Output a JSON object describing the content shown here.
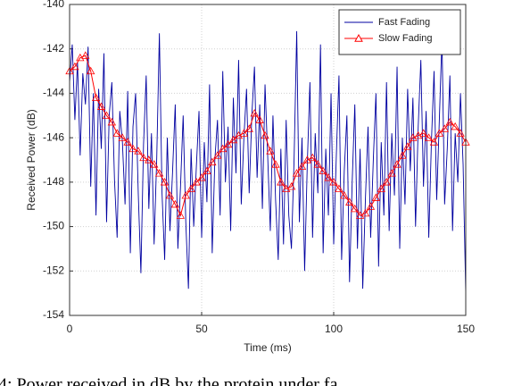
{
  "chart_data": {
    "type": "line",
    "xlabel": "Time (ms)",
    "ylabel": "Received Power (dB)",
    "caption": "4: Power received in dB by the protein under fa",
    "xlim": [
      0,
      150
    ],
    "xticks": [
      0,
      50,
      100,
      150
    ],
    "ylim": [
      -154,
      -140
    ],
    "yticks": [
      -154,
      -152,
      -150,
      -148,
      -146,
      -144,
      -142,
      -140
    ],
    "grid": true,
    "legend": "upper right",
    "series": [
      {
        "name": "Fast Fading",
        "color": "#0000a0",
        "marker": "none",
        "x": [
          0,
          1,
          2,
          3,
          4,
          5,
          6,
          7,
          8,
          9,
          10,
          11,
          12,
          13,
          14,
          15,
          16,
          17,
          18,
          19,
          20,
          21,
          22,
          23,
          24,
          25,
          26,
          27,
          28,
          29,
          30,
          31,
          32,
          33,
          34,
          35,
          36,
          37,
          38,
          39,
          40,
          41,
          42,
          43,
          44,
          45,
          46,
          47,
          48,
          49,
          50,
          51,
          52,
          53,
          54,
          55,
          56,
          57,
          58,
          59,
          60,
          61,
          62,
          63,
          64,
          65,
          66,
          67,
          68,
          69,
          70,
          71,
          72,
          73,
          74,
          75,
          76,
          77,
          78,
          79,
          80,
          81,
          82,
          83,
          84,
          85,
          86,
          87,
          88,
          89,
          90,
          91,
          92,
          93,
          94,
          95,
          96,
          97,
          98,
          99,
          100,
          101,
          102,
          103,
          104,
          105,
          106,
          107,
          108,
          109,
          110,
          111,
          112,
          113,
          114,
          115,
          116,
          117,
          118,
          119,
          120,
          121,
          122,
          123,
          124,
          125,
          126,
          127,
          128,
          129,
          130,
          131,
          132,
          133,
          134,
          135,
          136,
          137,
          138,
          139,
          140,
          141,
          142,
          143,
          144,
          145,
          146,
          147,
          148,
          149,
          150
        ],
        "values": [
          -143.5,
          -141.8,
          -145.2,
          -142.6,
          -146.8,
          -143.1,
          -144.5,
          -141.9,
          -148.2,
          -144.0,
          -149.5,
          -143.8,
          -146.5,
          -142.2,
          -149.8,
          -145.0,
          -143.5,
          -147.9,
          -150.5,
          -144.8,
          -146.2,
          -149.0,
          -143.9,
          -151.2,
          -145.5,
          -144.0,
          -148.5,
          -152.1,
          -146.3,
          -143.2,
          -149.2,
          -145.8,
          -150.8,
          -146.9,
          -141.3,
          -148.5,
          -151.5,
          -146.0,
          -150.2,
          -147.5,
          -144.5,
          -151.0,
          -148.2,
          -145.0,
          -149.8,
          -152.8,
          -146.5,
          -150.0,
          -147.3,
          -144.8,
          -150.5,
          -146.2,
          -148.9,
          -143.6,
          -151.2,
          -147.0,
          -145.2,
          -149.5,
          -143.0,
          -148.0,
          -145.5,
          -150.2,
          -144.2,
          -147.6,
          -142.5,
          -149.0,
          -146.0,
          -143.8,
          -148.5,
          -145.0,
          -142.8,
          -147.8,
          -144.5,
          -149.2,
          -143.6,
          -146.8,
          -150.2,
          -145.0,
          -148.8,
          -151.5,
          -146.5,
          -150.8,
          -145.2,
          -149.5,
          -151.0,
          -147.0,
          -141.2,
          -149.8,
          -146.0,
          -152.0,
          -147.2,
          -143.5,
          -150.5,
          -145.8,
          -148.5,
          -141.8,
          -151.2,
          -146.5,
          -149.5,
          -144.0,
          -150.8,
          -146.8,
          -143.2,
          -151.5,
          -147.5,
          -145.0,
          -152.5,
          -148.0,
          -144.5,
          -151.0,
          -146.5,
          -152.8,
          -148.8,
          -145.5,
          -150.5,
          -147.0,
          -144.0,
          -151.8,
          -146.2,
          -149.5,
          -143.5,
          -150.2,
          -145.8,
          -148.6,
          -142.8,
          -151.0,
          -146.0,
          -149.0,
          -143.8,
          -147.5,
          -144.2,
          -150.0,
          -145.5,
          -142.5,
          -148.2,
          -144.8,
          -150.5,
          -146.2,
          -143.0,
          -148.8,
          -145.2,
          -141.5,
          -149.0,
          -146.5,
          -143.2,
          -150.2,
          -145.8,
          -148.0,
          -144.0,
          -147.2,
          -153.0
        ]
      },
      {
        "name": "Slow Fading",
        "color": "#ff0000",
        "marker": "triangle",
        "x": [
          0,
          2,
          4,
          6,
          8,
          10,
          12,
          14,
          16,
          18,
          20,
          22,
          24,
          26,
          28,
          30,
          32,
          34,
          36,
          38,
          40,
          42,
          44,
          46,
          48,
          50,
          52,
          54,
          56,
          58,
          60,
          62,
          64,
          66,
          68,
          70,
          72,
          74,
          76,
          78,
          80,
          82,
          84,
          86,
          88,
          90,
          92,
          94,
          96,
          98,
          100,
          102,
          104,
          106,
          108,
          110,
          112,
          114,
          116,
          118,
          120,
          122,
          124,
          126,
          128,
          130,
          132,
          134,
          136,
          138,
          140,
          142,
          144,
          146,
          148,
          150
        ],
        "values": [
          -143,
          -142.8,
          -142.4,
          -142.3,
          -143,
          -144.2,
          -144.6,
          -145,
          -145.3,
          -145.8,
          -146,
          -146.2,
          -146.5,
          -146.6,
          -146.9,
          -147,
          -147.2,
          -147.6,
          -148,
          -148.6,
          -149,
          -149.5,
          -148.6,
          -148.3,
          -148,
          -147.8,
          -147.5,
          -147.1,
          -146.8,
          -146.5,
          -146.3,
          -146.1,
          -145.9,
          -145.8,
          -145.6,
          -144.9,
          -145.2,
          -145.9,
          -146.6,
          -147.2,
          -148,
          -148.3,
          -148.2,
          -147.6,
          -147.3,
          -147,
          -146.9,
          -147.2,
          -147.5,
          -147.8,
          -148,
          -148.3,
          -148.6,
          -148.9,
          -149.2,
          -149.5,
          -149.4,
          -149.1,
          -148.7,
          -148.3,
          -148,
          -147.6,
          -147.2,
          -146.8,
          -146.4,
          -146,
          -145.9,
          -145.8,
          -146,
          -146.2,
          -145.8,
          -145.6,
          -145.3,
          -145.5,
          -145.8,
          -146.2
        ]
      }
    ]
  }
}
